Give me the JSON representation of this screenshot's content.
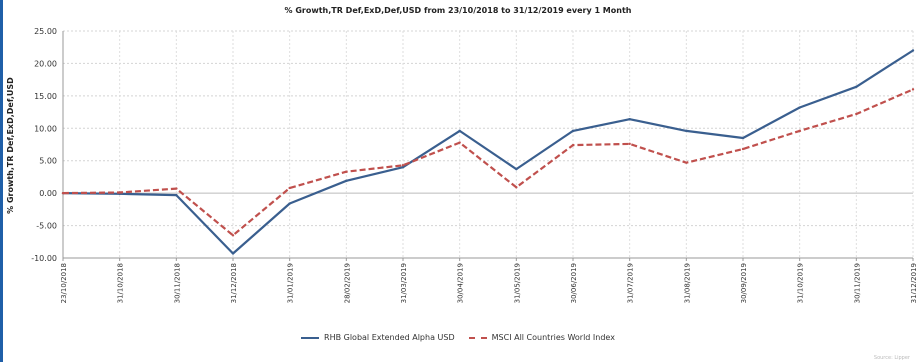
{
  "chart_data": {
    "type": "line",
    "title": "% Growth,TR Def,ExD,Def,USD from 23/10/2018 to 31/12/2019 every 1 Month",
    "ylabel": "% Growth,TR Def,ExD,Def,USD",
    "xlabel": "",
    "ylim": [
      -10,
      25
    ],
    "yticks": [
      -10,
      -5,
      0,
      5,
      10,
      15,
      20,
      25
    ],
    "ytick_labels": [
      "-10.00",
      "-5.00",
      "0.00",
      "5.00",
      "10.00",
      "15.00",
      "20.00",
      "25.00"
    ],
    "x": [
      "23/10/2018",
      "31/10/2018",
      "30/11/2018",
      "31/12/2018",
      "31/01/2019",
      "28/02/2019",
      "31/03/2019",
      "30/04/2019",
      "31/05/2019",
      "30/06/2019",
      "31/07/2019",
      "31/08/2019",
      "30/09/2019",
      "31/10/2019",
      "30/11/2019",
      "31/12/2019"
    ],
    "grid": true,
    "legend_position": "bottom",
    "series": [
      {
        "name": "RHB Global Extended Alpha USD",
        "color": "#3a5f8f",
        "style": "solid",
        "values": [
          0.0,
          -0.1,
          -0.3,
          -9.3,
          -1.6,
          1.9,
          4.0,
          9.6,
          3.7,
          9.6,
          11.4,
          9.6,
          8.5,
          13.2,
          16.4,
          22.0
        ]
      },
      {
        "name": "MSCI All Countries World Index",
        "color": "#c0504d",
        "style": "dashed",
        "values": [
          0.0,
          0.1,
          0.7,
          -6.5,
          0.8,
          3.3,
          4.3,
          7.8,
          0.9,
          7.4,
          7.6,
          4.7,
          6.8,
          9.6,
          12.2,
          16.0
        ]
      }
    ]
  },
  "footer": {
    "source": "Source: Lipper"
  }
}
